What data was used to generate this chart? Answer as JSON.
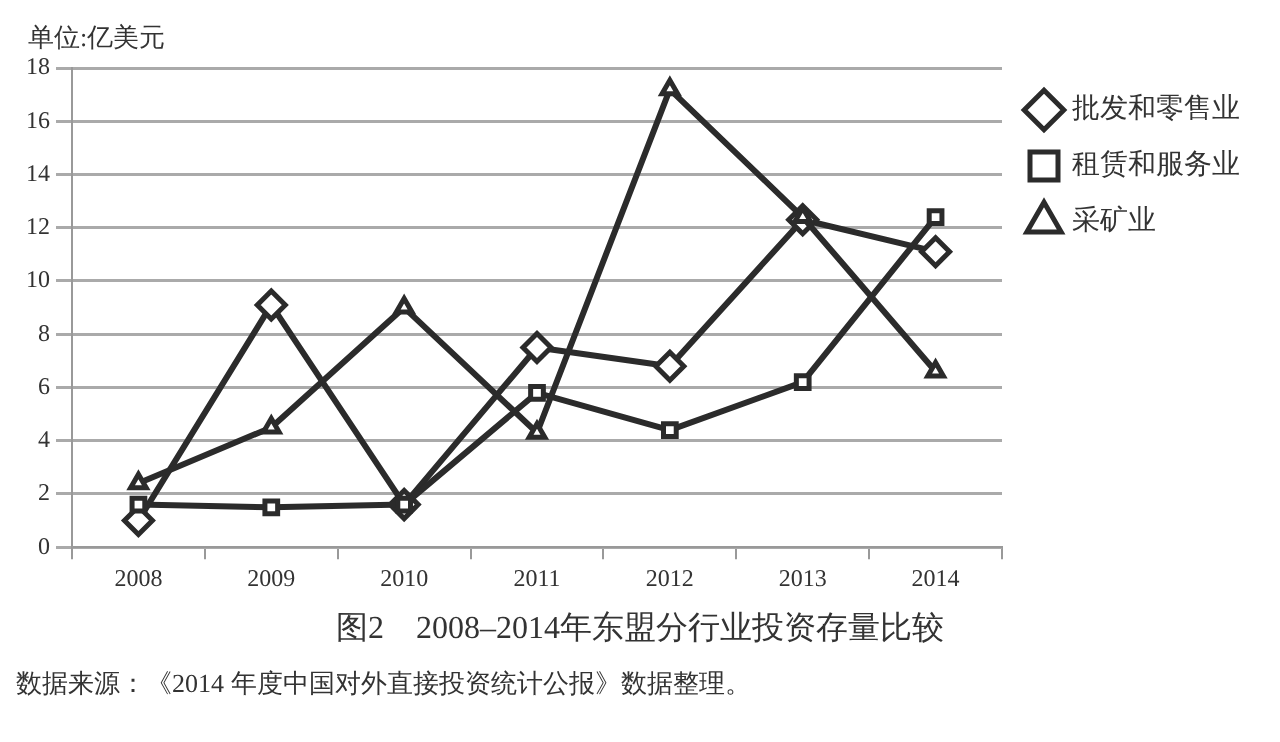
{
  "chart_data": {
    "type": "line",
    "title": "图2　2008–2014年东盟分行业投资存量比较",
    "ylabel": "单位:亿美元",
    "annotations": [
      "数据来源：《2014 年度中国对外直接投资统计公报》数据整理。"
    ],
    "categories": [
      "2008",
      "2009",
      "2010",
      "2011",
      "2012",
      "2013",
      "2014"
    ],
    "series": [
      {
        "name": "批发和零售业",
        "color": "#2b2b2b",
        "marker": "diamond",
        "values": [
          1.0,
          9.1,
          1.6,
          7.5,
          6.8,
          12.3,
          11.1
        ]
      },
      {
        "name": "租赁和服务业",
        "color": "#2b2b2b",
        "marker": "square",
        "values": [
          1.6,
          1.5,
          1.6,
          5.8,
          4.4,
          6.2,
          12.4
        ]
      },
      {
        "name": "采矿业",
        "color": "#2b2b2b",
        "marker": "triangle",
        "values": [
          2.4,
          4.5,
          9.0,
          4.3,
          17.2,
          12.4,
          6.6
        ]
      }
    ],
    "ylim": [
      0,
      18
    ],
    "yticks": [
      0,
      2,
      4,
      6,
      8,
      10,
      12,
      14,
      16,
      18
    ],
    "grid": "y",
    "legend": "right",
    "line_style": "solid"
  }
}
